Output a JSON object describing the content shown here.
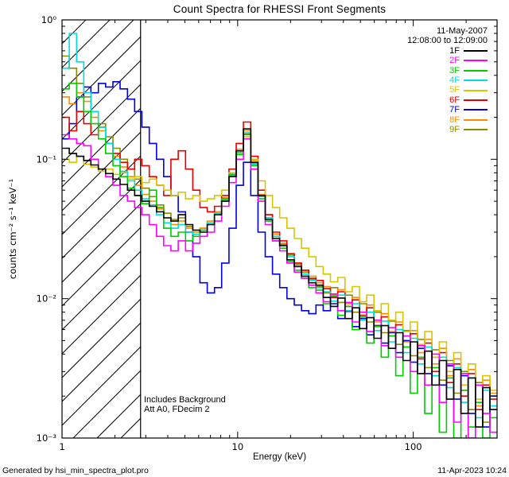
{
  "title": "Count Spectra for RHESSI Front Segments",
  "annotations": {
    "date": "11-May-2007",
    "time_range": "12:08:00 to 12:09:00",
    "background_note": "Includes Background",
    "atten_note": "Att A0, FDecim 2"
  },
  "footer": {
    "left": "Generated by hsi_min_spectra_plot.pro",
    "right": "11-Apr-2023 10:24"
  },
  "chart_data": {
    "type": "line",
    "subtype": "step-histogram",
    "title": "Count Spectra for RHESSI Front Segments",
    "xlabel": "Energy (keV)",
    "ylabel": "counts cm⁻² s⁻¹ keV⁻¹",
    "xscale": "log",
    "yscale": "log",
    "xlim": [
      1,
      300
    ],
    "ylim": [
      0.001,
      1
    ],
    "grid": false,
    "legend_position": "top-right",
    "x_ticks": [
      1,
      10,
      100
    ],
    "x_tick_labels": [
      "1",
      "10",
      "100"
    ],
    "y_ticks": [
      0.001,
      0.01,
      0.1,
      1
    ],
    "y_tick_labels": [
      "10⁻³",
      "10⁻²",
      "10⁻¹",
      "10⁰"
    ],
    "excluded_region_max_kev": 2.8,
    "bin_edges_kev": [
      1.0,
      1.1,
      1.21,
      1.33,
      1.46,
      1.61,
      1.77,
      1.95,
      2.14,
      2.36,
      2.59,
      2.85,
      3.14,
      3.45,
      3.79,
      4.17,
      4.59,
      5.05,
      5.55,
      6.1,
      6.71,
      7.38,
      8.11,
      8.92,
      9.81,
      10.79,
      11.87,
      13.05,
      14.35,
      15.78,
      17.36,
      19.09,
      21.0,
      23.09,
      25.39,
      27.93,
      30.71,
      33.77,
      37.14,
      40.84,
      44.91,
      49.39,
      54.31,
      59.73,
      65.68,
      72.23,
      79.43,
      87.35,
      96.05,
      105.6,
      116.2,
      127.7,
      140.5,
      154.5,
      169.9,
      186.8,
      205.4,
      225.9,
      248.4,
      273.2,
      300.4
    ],
    "series": [
      {
        "name": "1F",
        "color": "#000000",
        "values": [
          0.12,
          0.11,
          0.105,
          0.098,
          0.091,
          0.085,
          0.079,
          0.072,
          0.066,
          0.06,
          0.055,
          0.05,
          0.046,
          0.042,
          0.038,
          0.036,
          0.04,
          0.034,
          0.031,
          0.03,
          0.034,
          0.04,
          0.05,
          0.075,
          0.115,
          0.165,
          0.095,
          0.055,
          0.037,
          0.027,
          0.024,
          0.019,
          0.017,
          0.0145,
          0.013,
          0.0125,
          0.0102,
          0.0088,
          0.0101,
          0.0072,
          0.0086,
          0.0061,
          0.0073,
          0.0052,
          0.0064,
          0.0044,
          0.0057,
          0.0036,
          0.0049,
          0.0029,
          0.0042,
          0.0024,
          0.0036,
          0.0019,
          0.0031,
          0.0015,
          0.0027,
          0.0012,
          0.0023,
          0.0016
        ]
      },
      {
        "name": "2F",
        "color": "#ff00ff",
        "values": [
          0.15,
          0.14,
          0.13,
          0.125,
          0.1,
          0.085,
          0.075,
          0.065,
          0.055,
          0.05,
          0.045,
          0.04,
          0.034,
          0.028,
          0.024,
          0.022,
          0.026,
          0.022,
          0.025,
          0.028,
          0.03,
          0.036,
          0.046,
          0.068,
          0.1,
          0.14,
          0.085,
          0.05,
          0.034,
          0.026,
          0.022,
          0.018,
          0.0155,
          0.014,
          0.0125,
          0.011,
          0.0095,
          0.0108,
          0.0082,
          0.0094,
          0.0068,
          0.008,
          0.0058,
          0.007,
          0.0046,
          0.0062,
          0.0038,
          0.0054,
          0.003,
          0.0046,
          0.0024,
          0.004,
          0.0018,
          0.0034,
          0.0013,
          0.0029,
          0.001,
          0.0024,
          0.0015,
          0.0011
        ]
      },
      {
        "name": "3F",
        "color": "#00cc00",
        "values": [
          0.32,
          0.35,
          0.28,
          0.22,
          0.18,
          0.14,
          0.11,
          0.09,
          0.075,
          0.062,
          0.055,
          0.048,
          0.06,
          0.045,
          0.032,
          0.028,
          0.03,
          0.026,
          0.028,
          0.031,
          0.034,
          0.04,
          0.052,
          0.078,
          0.108,
          0.15,
          0.09,
          0.052,
          0.036,
          0.026,
          0.023,
          0.0185,
          0.016,
          0.014,
          0.012,
          0.0115,
          0.0092,
          0.0104,
          0.0076,
          0.0088,
          0.006,
          0.0074,
          0.0048,
          0.0063,
          0.0038,
          0.0054,
          0.0028,
          0.0045,
          0.0021,
          0.0038,
          0.0015,
          0.0032,
          0.0011,
          0.0027,
          0.001,
          0.0022,
          0.0012,
          0.0018,
          0.001,
          0.0014
        ]
      },
      {
        "name": "4F",
        "color": "#00dddd",
        "values": [
          0.45,
          0.8,
          0.5,
          0.3,
          0.22,
          0.17,
          0.13,
          0.1,
          0.082,
          0.07,
          0.06,
          0.052,
          0.047,
          0.04,
          0.035,
          0.032,
          0.034,
          0.03,
          0.029,
          0.031,
          0.035,
          0.041,
          0.051,
          0.076,
          0.112,
          0.155,
          0.092,
          0.054,
          0.038,
          0.028,
          0.024,
          0.02,
          0.017,
          0.015,
          0.0135,
          0.012,
          0.0112,
          0.0096,
          0.0106,
          0.0082,
          0.0092,
          0.007,
          0.008,
          0.0059,
          0.0069,
          0.0049,
          0.006,
          0.0041,
          0.0052,
          0.0034,
          0.0045,
          0.0028,
          0.0038,
          0.0023,
          0.0032,
          0.0018,
          0.0027,
          0.0014,
          0.0022,
          0.0017
        ]
      },
      {
        "name": "5F",
        "color": "#d8c500",
        "values": [
          0.1,
          0.095,
          0.105,
          0.092,
          0.088,
          0.082,
          0.085,
          0.078,
          0.08,
          0.072,
          0.075,
          0.068,
          0.072,
          0.065,
          0.06,
          0.055,
          0.058,
          0.052,
          0.055,
          0.05,
          0.052,
          0.055,
          0.06,
          0.08,
          0.11,
          0.145,
          0.1,
          0.07,
          0.055,
          0.045,
          0.038,
          0.032,
          0.027,
          0.023,
          0.02,
          0.017,
          0.015,
          0.0132,
          0.0142,
          0.0112,
          0.0122,
          0.0095,
          0.0106,
          0.0082,
          0.0092,
          0.007,
          0.008,
          0.0058,
          0.0068,
          0.0047,
          0.0058,
          0.0038,
          0.0049,
          0.003,
          0.0041,
          0.0024,
          0.0034,
          0.0019,
          0.0028,
          0.0022
        ]
      },
      {
        "name": "6F",
        "color": "#e60000",
        "values": [
          0.2,
          0.16,
          0.22,
          0.18,
          0.15,
          0.17,
          0.13,
          0.11,
          0.095,
          0.085,
          0.1,
          0.09,
          0.075,
          0.065,
          0.055,
          0.1,
          0.115,
          0.085,
          0.06,
          0.045,
          0.042,
          0.046,
          0.055,
          0.085,
          0.13,
          0.185,
          0.105,
          0.06,
          0.04,
          0.03,
          0.026,
          0.021,
          0.018,
          0.016,
          0.014,
          0.0135,
          0.0118,
          0.0102,
          0.0112,
          0.0088,
          0.0098,
          0.0076,
          0.0086,
          0.0064,
          0.0074,
          0.0054,
          0.0065,
          0.0045,
          0.0056,
          0.0037,
          0.0048,
          0.003,
          0.0041,
          0.0025,
          0.0034,
          0.002,
          0.0029,
          0.0016,
          0.0024,
          0.0019
        ]
      },
      {
        "name": "7F",
        "color": "#0000e0",
        "values": [
          0.14,
          0.18,
          0.28,
          0.33,
          0.3,
          0.35,
          0.33,
          0.36,
          0.32,
          0.27,
          0.22,
          0.17,
          0.13,
          0.1,
          0.075,
          0.055,
          0.042,
          0.03,
          0.02,
          0.013,
          0.011,
          0.012,
          0.018,
          0.032,
          0.065,
          0.095,
          0.055,
          0.03,
          0.02,
          0.015,
          0.012,
          0.01,
          0.009,
          0.0082,
          0.0078,
          0.009,
          0.0082,
          0.0092,
          0.0072,
          0.0081,
          0.0063,
          0.0072,
          0.0055,
          0.0064,
          0.0048,
          0.0057,
          0.0041,
          0.005,
          0.0035,
          0.0044,
          0.0029,
          0.0038,
          0.0024,
          0.0033,
          0.0019,
          0.0028,
          0.0015,
          0.0024,
          0.0012,
          0.002
        ]
      },
      {
        "name": "8F",
        "color": "#ff8c00",
        "values": [
          0.28,
          0.25,
          0.3,
          0.26,
          0.2,
          0.16,
          0.13,
          0.105,
          0.088,
          0.075,
          0.065,
          0.056,
          0.05,
          0.044,
          0.038,
          0.034,
          0.036,
          0.032,
          0.03,
          0.032,
          0.036,
          0.042,
          0.053,
          0.08,
          0.118,
          0.16,
          0.098,
          0.056,
          0.04,
          0.029,
          0.025,
          0.021,
          0.018,
          0.016,
          0.0145,
          0.013,
          0.0122,
          0.0106,
          0.0116,
          0.0092,
          0.0102,
          0.008,
          0.009,
          0.0068,
          0.0078,
          0.0058,
          0.0068,
          0.0049,
          0.0059,
          0.0041,
          0.0051,
          0.0034,
          0.0044,
          0.0028,
          0.0037,
          0.0022,
          0.0031,
          0.0017,
          0.0026,
          0.0021
        ]
      },
      {
        "name": "9F",
        "color": "#8b8b00",
        "values": [
          0.55,
          0.45,
          0.35,
          0.28,
          0.22,
          0.18,
          0.145,
          0.12,
          0.1,
          0.085,
          0.072,
          0.062,
          0.054,
          0.047,
          0.041,
          0.037,
          0.038,
          0.033,
          0.031,
          0.032,
          0.035,
          0.041,
          0.052,
          0.077,
          0.112,
          0.152,
          0.094,
          0.055,
          0.038,
          0.028,
          0.0245,
          0.0205,
          0.0175,
          0.0155,
          0.0138,
          0.0122,
          0.011,
          0.012,
          0.0094,
          0.0106,
          0.008,
          0.0092,
          0.0068,
          0.008,
          0.0057,
          0.0069,
          0.0047,
          0.0059,
          0.0039,
          0.0051,
          0.0032,
          0.0043,
          0.0026,
          0.0036,
          0.0021,
          0.003,
          0.0016,
          0.0025,
          0.0013,
          0.002
        ]
      }
    ]
  }
}
